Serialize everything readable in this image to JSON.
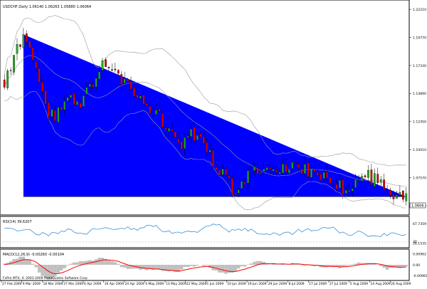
{
  "main_header": "USDCHF,Daily  1.06140 1.06263 1.05880 1.06064",
  "rsi_header": "RSI(14) 39.6207",
  "macd_header": "MACD(12,26,9) -0.00260 -0.00104",
  "copyright": "FxPro MT4, © 2001-2009 MetaQuotes Software Corp.",
  "current_price_label": "1.0606",
  "colors": {
    "triangle": "#0000ff",
    "bull_candle": "#22aa22",
    "bear_candle": "#dd0000",
    "bands": "#999999",
    "rsi_line": "#3a8fd6",
    "macd_hist": "#c0c0c0",
    "macd_signal": "#ff0000"
  },
  "chart_data": [
    {
      "type": "candlestick",
      "title": "USDCHF,Daily",
      "x_ticks": [
        "27 Feb 2009",
        "9 Mar 2009",
        "18 Mar 2009",
        "27 Mar 2009",
        "6 Apr 2009",
        "16 Apr 2009",
        "24 Apr 2009",
        "4 May 2009",
        "13 May 2009",
        "22 May 2009",
        "1 Jun 2009",
        "10 Jun 2009",
        "19 Jun 2009",
        "29 Jun 2009",
        "8 Jul 2009",
        "17 Jul 2009",
        "27 Jul 2009",
        "5 Aug 2009",
        "14 Aug 2009",
        "24 Aug 2009"
      ],
      "y_ticks": [
        "1.22210",
        "1.19770",
        "1.17330",
        "1.14890",
        "1.12450",
        "1.10010",
        "1.07570",
        "1.05130"
      ],
      "ylim": [
        1.0445,
        1.229
      ],
      "price_path": [
        [
          0,
          1.16
        ],
        [
          3,
          1.18
        ],
        [
          6,
          1.2
        ],
        [
          7,
          1.198
        ],
        [
          10,
          1.17
        ],
        [
          13,
          1.135
        ],
        [
          16,
          1.13
        ],
        [
          20,
          1.145
        ],
        [
          24,
          1.14
        ],
        [
          28,
          1.16
        ],
        [
          31,
          1.175
        ],
        [
          34,
          1.17
        ],
        [
          38,
          1.158
        ],
        [
          42,
          1.15
        ],
        [
          45,
          1.14
        ],
        [
          48,
          1.13
        ],
        [
          52,
          1.12
        ],
        [
          56,
          1.1
        ],
        [
          58,
          1.115
        ],
        [
          62,
          1.112
        ],
        [
          66,
          1.09
        ],
        [
          70,
          1.075
        ],
        [
          73,
          1.06
        ],
        [
          76,
          1.075
        ],
        [
          80,
          1.082
        ],
        [
          84,
          1.078
        ],
        [
          88,
          1.085
        ],
        [
          92,
          1.084
        ],
        [
          96,
          1.082
        ],
        [
          100,
          1.077
        ],
        [
          104,
          1.072
        ],
        [
          107,
          1.067
        ],
        [
          110,
          1.07
        ],
        [
          113,
          1.082
        ],
        [
          116,
          1.075
        ],
        [
          119,
          1.072
        ],
        [
          122,
          1.062
        ],
        [
          125,
          1.06
        ],
        [
          127,
          1.0606
        ]
      ],
      "overlay": {
        "type": "triangle",
        "apex": {
          "bar": 6,
          "price": 1.2003
        },
        "base_left": {
          "bar": 6,
          "price": 1.0592
        },
        "base_right": {
          "bar": 127,
          "price": 1.0592
        }
      }
    },
    {
      "type": "line",
      "title": "RSI(14)",
      "y_ticks": [
        "67.7359",
        "30",
        "26.1535"
      ],
      "ylim": [
        20,
        80
      ]
    },
    {
      "type": "area",
      "title": "MACD(12,26,9)",
      "y_ticks": [
        "0.00962",
        "0.00",
        "-0.00960"
      ],
      "ylim": [
        -0.0125,
        0.0125
      ]
    }
  ]
}
